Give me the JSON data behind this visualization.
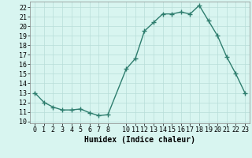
{
  "x": [
    0,
    1,
    2,
    3,
    4,
    5,
    6,
    7,
    8,
    10,
    11,
    12,
    13,
    14,
    15,
    16,
    17,
    18,
    19,
    20,
    21,
    22,
    23
  ],
  "y": [
    13,
    12,
    11.5,
    11.2,
    11.2,
    11.3,
    10.9,
    10.6,
    10.7,
    15.5,
    16.6,
    19.5,
    20.4,
    21.3,
    21.3,
    21.5,
    21.3,
    22.2,
    20.6,
    19.0,
    16.8,
    15.0,
    13.0
  ],
  "line_color": "#2e7d6e",
  "marker": "+",
  "marker_size": 4,
  "marker_lw": 1.0,
  "line_width": 1.0,
  "bg_color": "#d8f5f0",
  "grid_color": "#b8ddd8",
  "xlabel": "Humidex (Indice chaleur)",
  "ylabel_ticks": [
    10,
    11,
    12,
    13,
    14,
    15,
    16,
    17,
    18,
    19,
    20,
    21,
    22
  ],
  "ylim": [
    9.8,
    22.6
  ],
  "xlim": [
    -0.5,
    23.5
  ],
  "xticks": [
    0,
    1,
    2,
    3,
    4,
    5,
    6,
    7,
    8,
    10,
    11,
    12,
    13,
    14,
    15,
    16,
    17,
    18,
    19,
    20,
    21,
    22,
    23
  ],
  "tick_fontsize": 6,
  "xlabel_fontsize": 7
}
